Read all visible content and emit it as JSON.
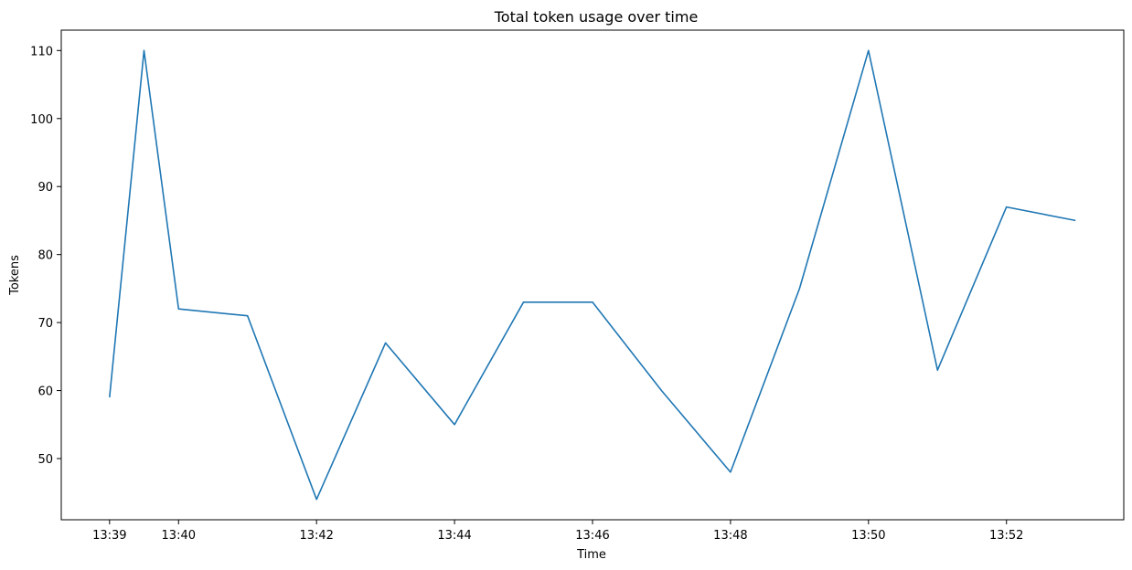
{
  "chart_data": {
    "type": "line",
    "title": "Total token usage over time",
    "xlabel": "Time",
    "ylabel": "Tokens",
    "x": [
      "13:39",
      "13:39:30",
      "13:40",
      "13:41",
      "13:42",
      "13:43",
      "13:44",
      "13:45",
      "13:46",
      "13:47",
      "13:48",
      "13:49",
      "13:50",
      "13:51",
      "13:52",
      "13:53"
    ],
    "x_ticks": [
      "13:39",
      "13:40",
      "13:42",
      "13:44",
      "13:46",
      "13:48",
      "13:50",
      "13:52"
    ],
    "y_ticks": [
      50,
      60,
      70,
      80,
      90,
      100,
      110
    ],
    "ylim": [
      41,
      113
    ],
    "series": [
      {
        "values": [
          59,
          110,
          72,
          71,
          44,
          67,
          55,
          73,
          73,
          60,
          48,
          75,
          110,
          63,
          87,
          85
        ]
      }
    ],
    "grid": false,
    "colors": {
      "line": "#1f77b4",
      "axes": "#000000"
    }
  }
}
